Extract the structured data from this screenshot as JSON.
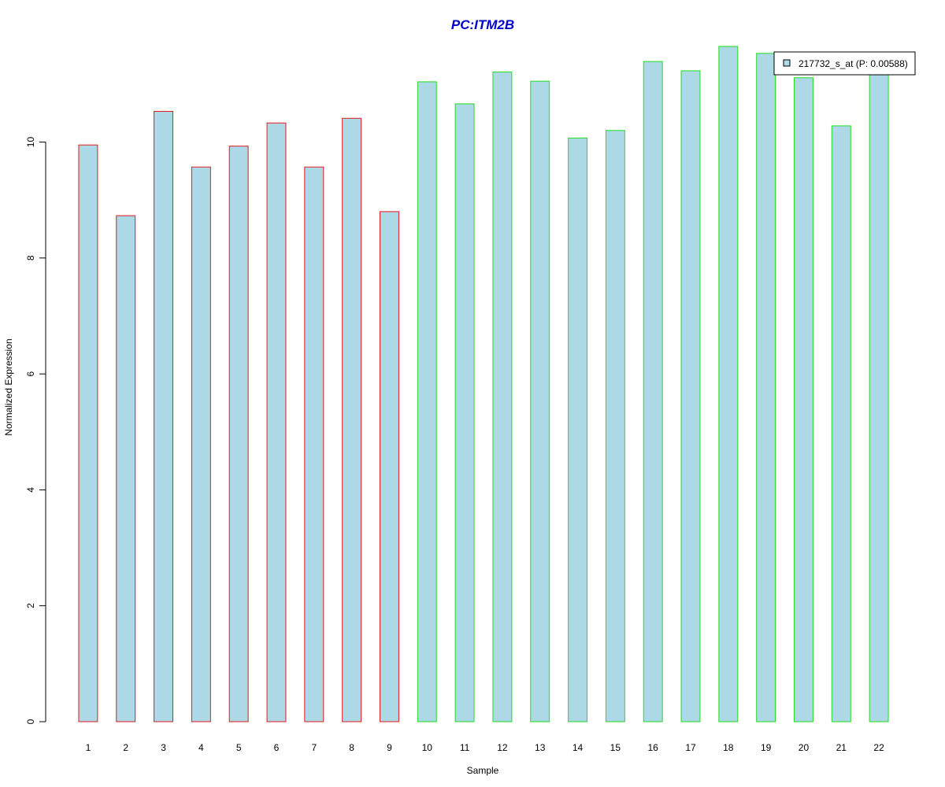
{
  "chart_data": {
    "type": "bar",
    "title": "PC:ITM2B",
    "xlabel": "Sample",
    "ylabel": "Normalized Expression",
    "categories": [
      "1",
      "2",
      "3",
      "4",
      "5",
      "6",
      "7",
      "8",
      "9",
      "10",
      "11",
      "12",
      "13",
      "14",
      "15",
      "16",
      "17",
      "18",
      "19",
      "20",
      "21",
      "22"
    ],
    "series": [
      {
        "name": "217732_s_at (P: 0.00588)",
        "values": [
          9.95,
          8.73,
          10.53,
          9.57,
          9.93,
          10.33,
          9.57,
          10.41,
          8.8,
          11.04,
          10.66,
          11.21,
          11.05,
          10.07,
          10.2,
          11.39,
          11.23,
          11.65,
          11.53,
          11.11,
          10.28,
          11.42
        ]
      }
    ],
    "groups": [
      {
        "categories": [
          "1",
          "2",
          "3",
          "4",
          "5",
          "6",
          "7",
          "8",
          "9"
        ],
        "border_color": "#e31a1c"
      },
      {
        "categories": [
          "10",
          "11",
          "12",
          "13",
          "14",
          "15",
          "16",
          "17",
          "18",
          "19",
          "20",
          "21",
          "22"
        ],
        "border_color": "#22dd22"
      }
    ],
    "yticks": [
      0,
      2,
      4,
      6,
      8,
      10
    ],
    "ylim": [
      0,
      11.65
    ],
    "legend_position": "top-right",
    "colors": {
      "bar_fill": "#add8e6",
      "title": "#0000cc",
      "group1_border": "#e31a1c",
      "group2_border": "#22dd22"
    }
  }
}
